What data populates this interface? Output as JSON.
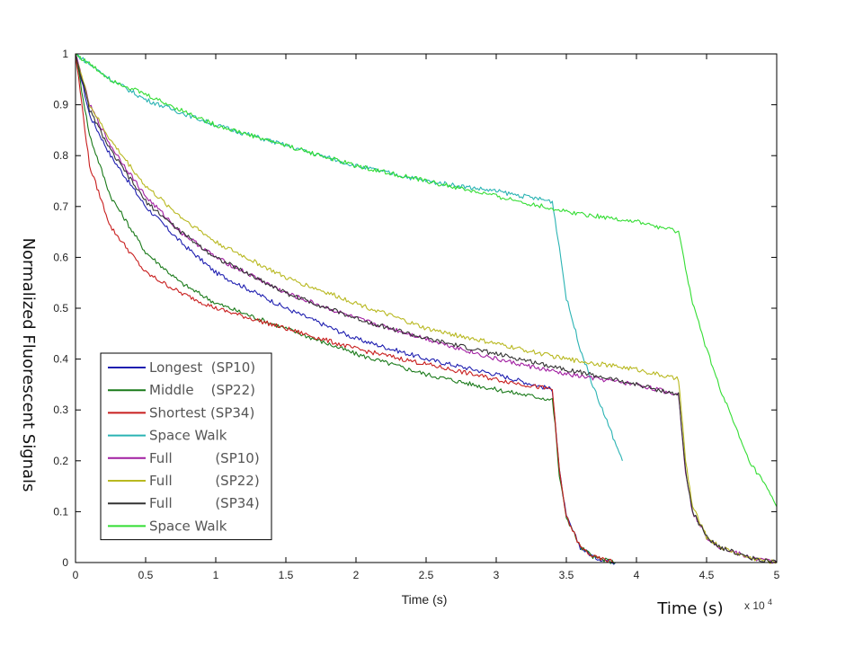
{
  "chart_data": {
    "type": "line",
    "xlabel": "Time (s)",
    "xlabel_secondary": "Time (s)",
    "ylabel": "Normalized Fluorescent Signals",
    "x_exponent_base": "x 10",
    "x_exponent_power": "4",
    "xlim": [
      0,
      5
    ],
    "ylim": [
      0,
      1
    ],
    "xticks": [
      "0",
      "0.5",
      "1",
      "1.5",
      "2",
      "2.5",
      "3",
      "3.5",
      "4",
      "4.5",
      "5"
    ],
    "yticks": [
      "0",
      "0.1",
      "0.2",
      "0.3",
      "0.4",
      "0.5",
      "0.6",
      "0.7",
      "0.8",
      "0.9",
      "1"
    ],
    "grid": false,
    "legend_position": "bottom-left",
    "series": [
      {
        "name": "Longest  (SP10)",
        "color": "#1f1fb0",
        "x": [
          0,
          0.1,
          0.25,
          0.5,
          0.75,
          1,
          1.5,
          2,
          2.5,
          3,
          3.4,
          3.42,
          3.45,
          3.5,
          3.6,
          3.7,
          3.85
        ],
        "y": [
          1,
          0.88,
          0.8,
          0.7,
          0.63,
          0.57,
          0.5,
          0.44,
          0.4,
          0.37,
          0.34,
          0.28,
          0.18,
          0.09,
          0.03,
          0.01,
          0.0
        ]
      },
      {
        "name": "Middle    (SP22)",
        "color": "#1a7a1a",
        "x": [
          0,
          0.1,
          0.25,
          0.5,
          0.75,
          1,
          1.5,
          2,
          2.5,
          3,
          3.4,
          3.42,
          3.45,
          3.5,
          3.6,
          3.7,
          3.85
        ],
        "y": [
          1,
          0.84,
          0.72,
          0.61,
          0.55,
          0.51,
          0.46,
          0.41,
          0.37,
          0.34,
          0.32,
          0.27,
          0.17,
          0.09,
          0.03,
          0.01,
          0.0
        ]
      },
      {
        "name": "Shortest (SP34)",
        "color": "#c81e1e",
        "x": [
          0,
          0.1,
          0.25,
          0.5,
          0.75,
          1,
          1.5,
          2,
          2.5,
          3,
          3.4,
          3.42,
          3.45,
          3.5,
          3.6,
          3.7,
          3.85
        ],
        "y": [
          1,
          0.78,
          0.66,
          0.57,
          0.53,
          0.5,
          0.46,
          0.42,
          0.39,
          0.36,
          0.34,
          0.28,
          0.18,
          0.09,
          0.03,
          0.01,
          0.0
        ]
      },
      {
        "name": "Space Walk",
        "color": "#2ab3b3",
        "x": [
          0,
          0.25,
          0.5,
          1,
          1.5,
          2,
          2.5,
          3,
          3.4,
          3.45,
          3.5,
          3.6,
          3.7,
          3.8,
          3.9
        ],
        "y": [
          1,
          0.95,
          0.91,
          0.86,
          0.82,
          0.78,
          0.75,
          0.73,
          0.71,
          0.62,
          0.52,
          0.42,
          0.34,
          0.27,
          0.2
        ]
      },
      {
        "name": "Full          (SP10)",
        "color": "#a11ea1",
        "x": [
          0,
          0.1,
          0.25,
          0.5,
          0.75,
          1,
          1.5,
          2,
          2.5,
          3,
          3.5,
          4,
          4.3,
          4.32,
          4.35,
          4.4,
          4.5,
          4.6,
          4.8,
          5
        ],
        "y": [
          1,
          0.9,
          0.82,
          0.72,
          0.65,
          0.6,
          0.53,
          0.48,
          0.44,
          0.4,
          0.37,
          0.35,
          0.33,
          0.27,
          0.18,
          0.1,
          0.05,
          0.03,
          0.01,
          0.0
        ]
      },
      {
        "name": "Full          (SP22)",
        "color": "#b8b820",
        "x": [
          0,
          0.1,
          0.25,
          0.5,
          0.75,
          1,
          1.5,
          2,
          2.5,
          3,
          3.5,
          4,
          4.3,
          4.32,
          4.35,
          4.4,
          4.5,
          4.6,
          4.8,
          5
        ],
        "y": [
          1,
          0.9,
          0.83,
          0.74,
          0.68,
          0.63,
          0.56,
          0.51,
          0.46,
          0.43,
          0.4,
          0.38,
          0.36,
          0.3,
          0.2,
          0.11,
          0.05,
          0.03,
          0.01,
          0.0
        ]
      },
      {
        "name": "Full          (SP34)",
        "color": "#333333",
        "x": [
          0,
          0.1,
          0.25,
          0.5,
          0.75,
          1,
          1.5,
          2,
          2.5,
          3,
          3.5,
          4,
          4.3,
          4.32,
          4.35,
          4.4,
          4.5,
          4.6,
          4.8,
          5
        ],
        "y": [
          1,
          0.89,
          0.81,
          0.71,
          0.65,
          0.6,
          0.53,
          0.48,
          0.44,
          0.41,
          0.38,
          0.35,
          0.33,
          0.27,
          0.18,
          0.1,
          0.05,
          0.03,
          0.01,
          0.0
        ]
      },
      {
        "name": "Space Walk",
        "color": "#33dd33",
        "x": [
          0,
          0.25,
          0.5,
          1,
          1.5,
          2,
          2.5,
          3,
          3.5,
          4,
          4.3,
          4.35,
          4.4,
          4.5,
          4.6,
          4.7,
          4.8,
          4.9,
          5
        ],
        "y": [
          1,
          0.95,
          0.92,
          0.86,
          0.82,
          0.78,
          0.75,
          0.72,
          0.69,
          0.67,
          0.65,
          0.58,
          0.51,
          0.42,
          0.34,
          0.27,
          0.2,
          0.16,
          0.11
        ]
      }
    ]
  }
}
